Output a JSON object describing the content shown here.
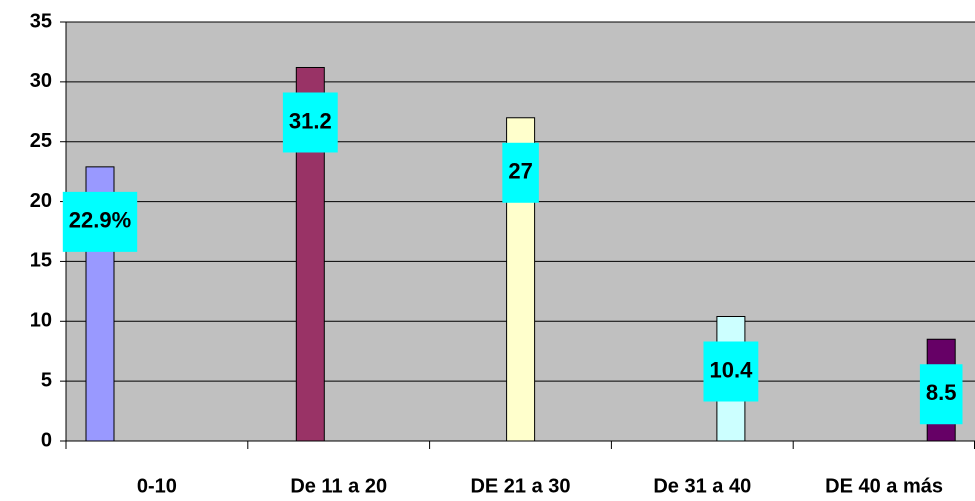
{
  "chart_data": {
    "type": "bar",
    "categories": [
      "0-10",
      "De 11 a 20",
      "DE  21 a 30",
      "De 31 a 40",
      "DE 40 a más"
    ],
    "values": [
      22.9,
      31.2,
      27,
      10.4,
      8.5
    ],
    "value_labels": [
      "22.9%",
      "31.2",
      "27",
      "10.4",
      "8.5"
    ],
    "colors": [
      "#9999ff",
      "#993366",
      "#ffffcc",
      "#ccffff",
      "#660066"
    ],
    "ylim": [
      0,
      35
    ],
    "yticks": [
      0,
      5,
      10,
      15,
      20,
      25,
      30,
      35
    ],
    "grid": true
  }
}
